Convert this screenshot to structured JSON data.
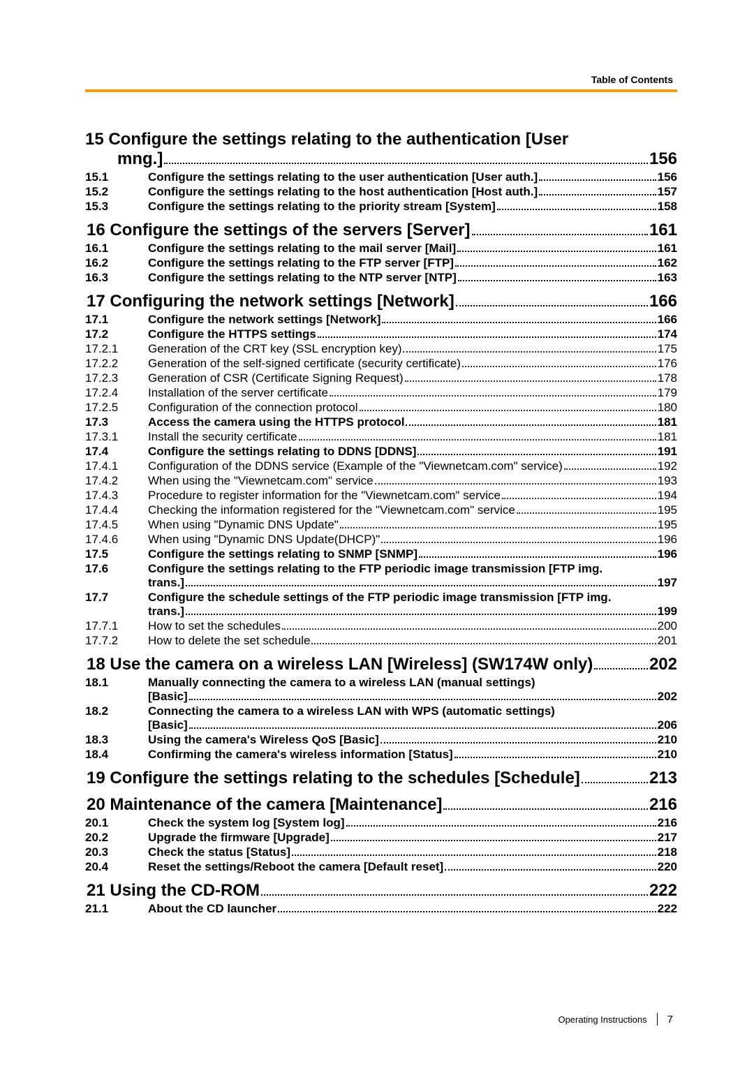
{
  "header": {
    "title": "Table of Contents"
  },
  "colors": {
    "rule": "#f59e0b",
    "text": "#000000",
    "background": "#ffffff"
  },
  "footer": {
    "label": "Operating Instructions",
    "page_number": "7"
  },
  "toc": [
    {
      "level": 1,
      "multiline": true,
      "line1": "15 Configure the settings relating to the authentication [User",
      "line2": "mng.] ",
      "page": "156"
    },
    {
      "level": 2,
      "num": "15.1",
      "text": "Configure the settings relating to the user authentication [User auth.] ",
      "page": "156"
    },
    {
      "level": 2,
      "num": "15.2",
      "text": "Configure the settings relating to the host authentication [Host auth.] ",
      "page": "157"
    },
    {
      "level": 2,
      "num": "15.3",
      "text": "Configure the settings relating to the priority stream [System] ",
      "page": "158"
    },
    {
      "level": 1,
      "num": "",
      "text": "16 Configure the settings of the servers [Server] ",
      "page": "161"
    },
    {
      "level": 2,
      "num": "16.1",
      "text": "Configure the settings relating to the mail server [Mail] ",
      "page": "161"
    },
    {
      "level": 2,
      "num": "16.2",
      "text": "Configure the settings relating to the FTP server [FTP] ",
      "page": "162"
    },
    {
      "level": 2,
      "num": "16.3",
      "text": "Configure the settings relating to the NTP server [NTP] ",
      "page": "163"
    },
    {
      "level": 1,
      "num": "",
      "text": "17 Configuring the network settings [Network] ",
      "page": "166"
    },
    {
      "level": 2,
      "num": "17.1",
      "text": "Configure the network settings [Network] ",
      "page": "166"
    },
    {
      "level": 2,
      "num": "17.2",
      "text": "Configure the HTTPS settings ",
      "page": "174"
    },
    {
      "level": 3,
      "num": "17.2.1",
      "text": "Generation of the CRT key (SSL encryption key) ",
      "page": "175"
    },
    {
      "level": 3,
      "num": "17.2.2",
      "text": "Generation of the self-signed certificate (security certificate) ",
      "page": "176"
    },
    {
      "level": 3,
      "num": "17.2.3",
      "text": "Generation of CSR (Certificate Signing Request) ",
      "page": "178"
    },
    {
      "level": 3,
      "num": "17.2.4",
      "text": "Installation of the server certificate ",
      "page": "179"
    },
    {
      "level": 3,
      "num": "17.2.5",
      "text": "Configuration of the connection protocol ",
      "page": "180"
    },
    {
      "level": 2,
      "num": "17.3",
      "text": "Access the camera using the HTTPS protocol ",
      "page": "181"
    },
    {
      "level": 3,
      "num": "17.3.1",
      "text": "Install the security certificate ",
      "page": "181"
    },
    {
      "level": 2,
      "num": "17.4",
      "text": "Configure the settings relating to DDNS [DDNS] ",
      "page": "191"
    },
    {
      "level": 3,
      "num": "17.4.1",
      "text": "Configuration of the DDNS service (Example of the \"Viewnetcam.com\" service) ",
      "page": "192"
    },
    {
      "level": 3,
      "num": "17.4.2",
      "text": "When using the \"Viewnetcam.com\" service ",
      "page": "193"
    },
    {
      "level": 3,
      "num": "17.4.3",
      "text": "Procedure to register information for the \"Viewnetcam.com\" service ",
      "page": "194"
    },
    {
      "level": 3,
      "num": "17.4.4",
      "text": "Checking the information registered for the \"Viewnetcam.com\" service ",
      "page": "195"
    },
    {
      "level": 3,
      "num": "17.4.5",
      "text": "When using \"Dynamic DNS Update\" ",
      "page": "195"
    },
    {
      "level": 3,
      "num": "17.4.6",
      "text": "When using \"Dynamic DNS Update(DHCP)\" ",
      "page": "196"
    },
    {
      "level": 2,
      "num": "17.5",
      "text": "Configure the settings relating to SNMP [SNMP] ",
      "page": "196"
    },
    {
      "level": 2,
      "wrap": true,
      "num": "17.6",
      "text_top": "Configure the settings relating to the FTP periodic image transmission [FTP img.",
      "text_bottom": "trans.] ",
      "page": "197"
    },
    {
      "level": 2,
      "wrap": true,
      "num": "17.7",
      "text_top": "Configure the schedule settings of the FTP periodic image transmission [FTP img.",
      "text_bottom": "trans.] ",
      "page": "199"
    },
    {
      "level": 3,
      "num": "17.7.1",
      "text": "How to set the schedules ",
      "page": "200"
    },
    {
      "level": 3,
      "num": "17.7.2",
      "text": "How to delete the set schedule ",
      "page": "201"
    },
    {
      "level": 1,
      "num": "",
      "text": "18 Use the camera on a wireless LAN [Wireless] (SW174W only) ",
      "page": "202"
    },
    {
      "level": 2,
      "wrap": true,
      "num": "18.1",
      "text_top": "Manually connecting the camera to a wireless LAN (manual settings)",
      "text_bottom": "[Basic] ",
      "page": "202"
    },
    {
      "level": 2,
      "wrap": true,
      "num": "18.2",
      "text_top": "Connecting the camera to a wireless LAN with WPS (automatic settings)",
      "text_bottom": "[Basic] ",
      "page": "206"
    },
    {
      "level": 2,
      "num": "18.3",
      "text": "Using the camera's Wireless QoS [Basic] ",
      "page": "210"
    },
    {
      "level": 2,
      "num": "18.4",
      "text": "Confirming the camera's wireless information [Status] ",
      "page": "210"
    },
    {
      "level": 1,
      "num": "",
      "text": "19 Configure the settings relating to the schedules [Schedule] ",
      "page": "213"
    },
    {
      "level": 1,
      "num": "",
      "text": "20 Maintenance of the camera [Maintenance] ",
      "page": "216"
    },
    {
      "level": 2,
      "num": "20.1",
      "text": "Check the system log [System log] ",
      "page": "216"
    },
    {
      "level": 2,
      "num": "20.2",
      "text": "Upgrade the firmware [Upgrade] ",
      "page": "217"
    },
    {
      "level": 2,
      "num": "20.3",
      "text": "Check the status [Status] ",
      "page": "218"
    },
    {
      "level": 2,
      "num": "20.4",
      "text": "Reset the settings/Reboot the camera [Default reset] ",
      "page": "220"
    },
    {
      "level": 1,
      "num": "",
      "text": "21 Using the CD-ROM ",
      "page": "222"
    },
    {
      "level": 2,
      "num": "21.1",
      "text": "About the CD launcher ",
      "page": "222"
    }
  ]
}
